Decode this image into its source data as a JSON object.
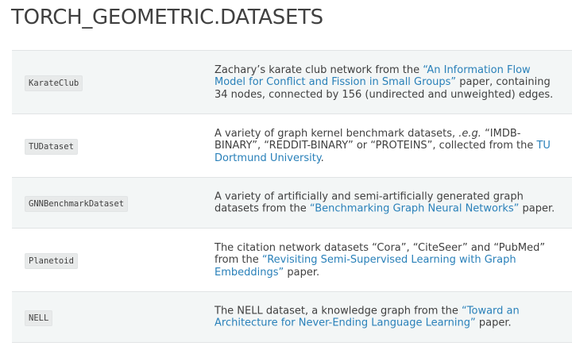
{
  "page": {
    "title": "TORCH_GEOMETRIC.DATASETS"
  },
  "datasets": [
    {
      "name": "KarateClub",
      "desc_before": "Zachary’s karate club network from the ",
      "link": "“An Information Flow Model for Conflict and Fission in Small Groups”",
      "desc_after": " paper, containing 34 nodes, connected by 156 (undirected and unweighted) edges."
    },
    {
      "name": "TUDataset",
      "desc_before": "A variety of graph kernel benchmark datasets, ",
      "desc_em": ".e.g.",
      "desc_mid": " “IMDB-BINARY”, “REDDIT-BINARY” or “PROTEINS”, collected from the ",
      "link": "TU Dortmund University",
      "desc_after": "."
    },
    {
      "name": "GNNBenchmarkDataset",
      "desc_before": "A variety of artificially and semi-artificially generated graph datasets from the ",
      "link": "“Benchmarking Graph Neural Networks”",
      "desc_after": " paper."
    },
    {
      "name": "Planetoid",
      "desc_before": "The citation network datasets “Cora”, “CiteSeer” and “PubMed” from the ",
      "link": "“Revisiting Semi-Supervised Learning with Graph Embeddings”",
      "desc_after": " paper."
    },
    {
      "name": "NELL",
      "desc_before": "The NELL dataset, a knowledge graph from the ",
      "link": "“Toward an Architecture for Never-Ending Language Learning”",
      "desc_after": " paper."
    }
  ],
  "colors": {
    "text": "#404040",
    "link": "#2980b9",
    "row_odd": "#f3f6f6",
    "row_even": "#ffffff",
    "border": "#e1e4e5"
  }
}
